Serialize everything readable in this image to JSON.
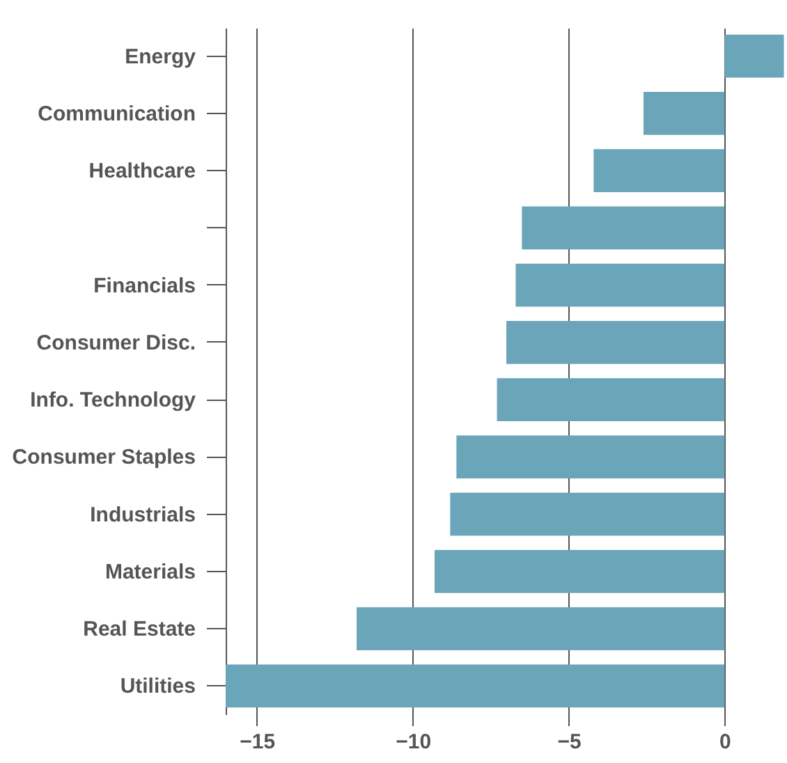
{
  "chart_data": {
    "type": "bar",
    "orientation": "horizontal",
    "categories": [
      "Energy",
      "Communication",
      "Healthcare",
      null,
      "Financials",
      "Consumer Disc.",
      "Info. Technology",
      "Consumer Staples",
      "Industrials",
      "Materials",
      "Real Estate",
      "Utilities"
    ],
    "values": [
      1.9,
      -2.6,
      -4.2,
      -6.5,
      -6.7,
      -7.0,
      -7.3,
      -8.6,
      -8.8,
      -9.3,
      -11.8,
      -16.0
    ],
    "color": "#6aa5b9",
    "xlim": [
      -16,
      2
    ],
    "xticks": [
      -15,
      -10,
      -5,
      0
    ],
    "grid": "x"
  }
}
